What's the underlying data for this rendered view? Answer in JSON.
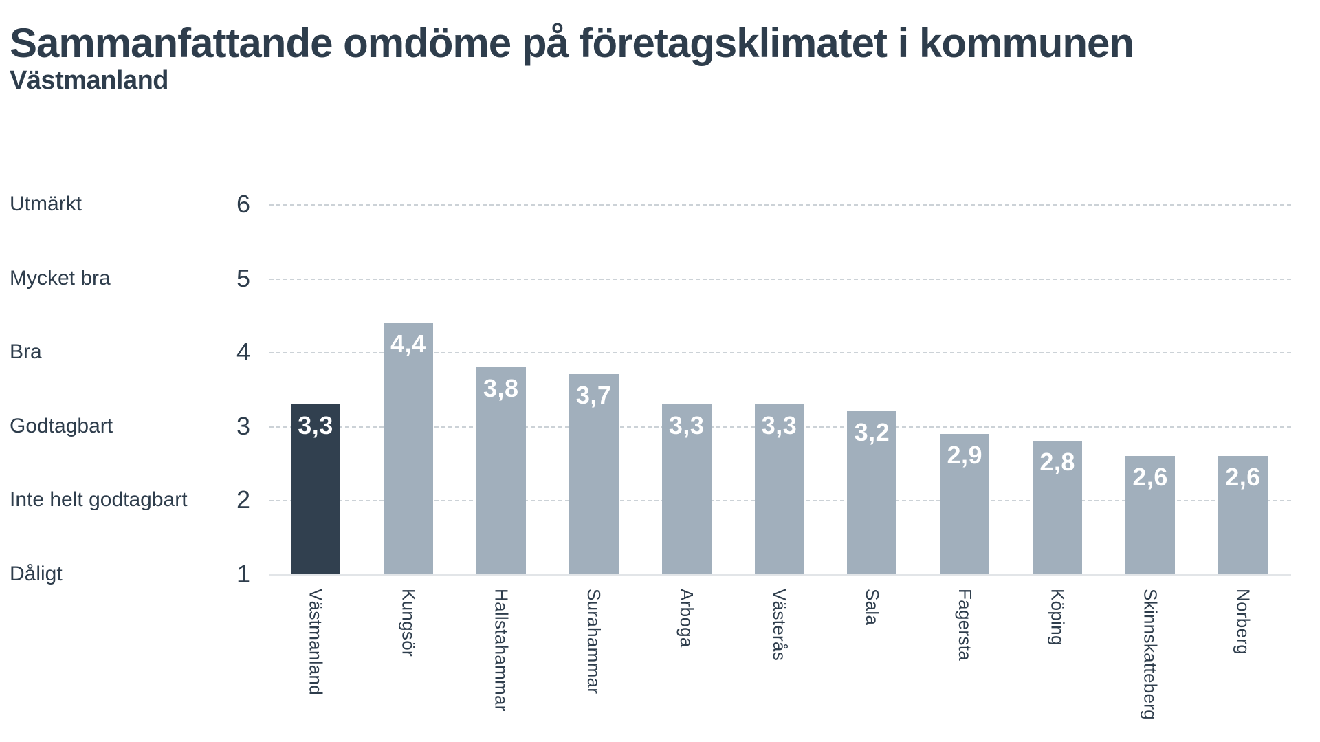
{
  "title": "Sammanfattande omdöme på företagsklimatet i kommunen",
  "subtitle": "Västmanland",
  "colors": {
    "text": "#2e3d4c",
    "bar_highlight": "#31404f",
    "bar_default": "#a1afbc",
    "value_label": "#ffffff",
    "gridline": "#ccd2d7",
    "baseline": "#e2e5e8",
    "background": "#ffffff"
  },
  "chart_data": {
    "type": "bar",
    "title": "Sammanfattande omdöme på företagsklimatet i kommunen",
    "subtitle": "Västmanland",
    "categories": [
      "Västmanland",
      "Kungsör",
      "Hallstahammar",
      "Surahammar",
      "Arboga",
      "Västerås",
      "Sala",
      "Fagersta",
      "Köping",
      "Skinnskatteberg",
      "Norberg"
    ],
    "values": [
      3.3,
      4.4,
      3.8,
      3.7,
      3.3,
      3.3,
      3.2,
      2.9,
      2.8,
      2.6,
      2.6
    ],
    "value_labels": [
      "3,3",
      "4,4",
      "3,8",
      "3,7",
      "3,3",
      "3,3",
      "3,2",
      "2,9",
      "2,8",
      "2,6",
      "2,6"
    ],
    "highlight_category": "Västmanland",
    "highlight_index": 0,
    "y_axis": {
      "min": 1,
      "max": 6,
      "ticks": [
        6,
        5,
        4,
        3,
        2,
        1
      ],
      "tick_words": [
        "Utmärkt",
        "Mycket bra",
        "Bra",
        "Godtagbart",
        "Inte helt godtagbart",
        "Dåligt"
      ]
    },
    "xlabel": "",
    "ylabel": "",
    "grid": "horizontal-dashed",
    "legend": "none"
  }
}
